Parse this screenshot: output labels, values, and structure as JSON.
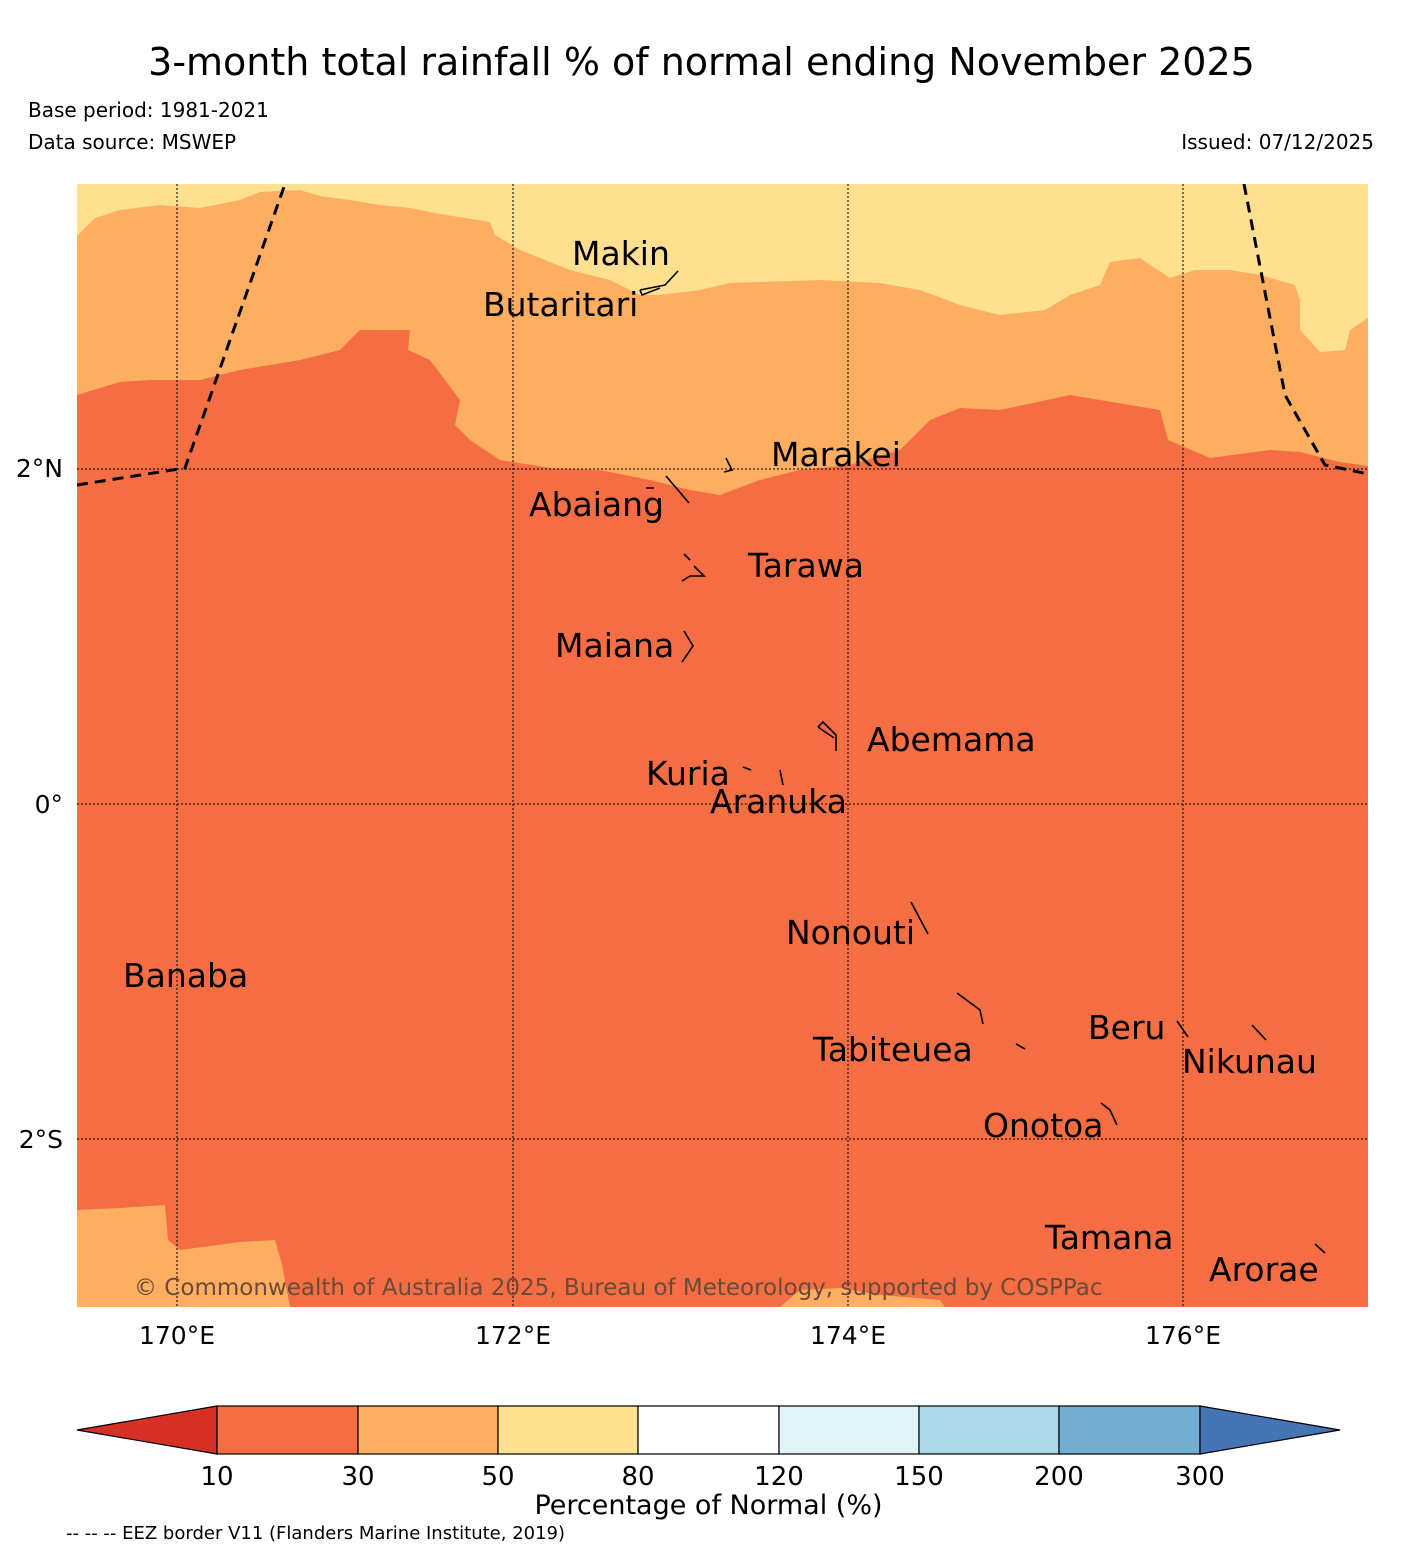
{
  "title": "3-month total rainfall % of normal ending November 2025",
  "base_period": "Base period: 1981-2021",
  "data_source": "Data source: MSWEP",
  "issued": "Issued: 07/12/2025",
  "latitude_labels": [
    "2°N",
    "0°",
    "2°S"
  ],
  "longitude_labels": [
    "170°E",
    "172°E",
    "174°E",
    "176°E"
  ],
  "islands": [
    "Makin",
    "Butaritari",
    "Marakei",
    "Abaiang",
    "Tarawa",
    "Maiana",
    "Abemama",
    "Kuria",
    "Aranuka",
    "Nonouti",
    "Banaba",
    "Beru",
    "Tabiteuea",
    "Nikunau",
    "Onotoa",
    "Tamana",
    "Arorae"
  ],
  "copyright": "© Commonwealth of Australia 2025, Bureau of Meteorology, supported by COSPPac",
  "colorbar": {
    "label": "Percentage of Normal (%)",
    "ticks": [
      "10",
      "30",
      "50",
      "80",
      "120",
      "150",
      "200",
      "300"
    ],
    "colors": [
      "#d73027",
      "#f46d43",
      "#fdae61",
      "#fee090",
      "#ffffff",
      "#e0f3f8",
      "#abd9e9",
      "#74add1",
      "#4575b4"
    ]
  },
  "eez_note": "-- -- -- EEZ border V11 (Flanders Marine Institute, 2019)"
}
